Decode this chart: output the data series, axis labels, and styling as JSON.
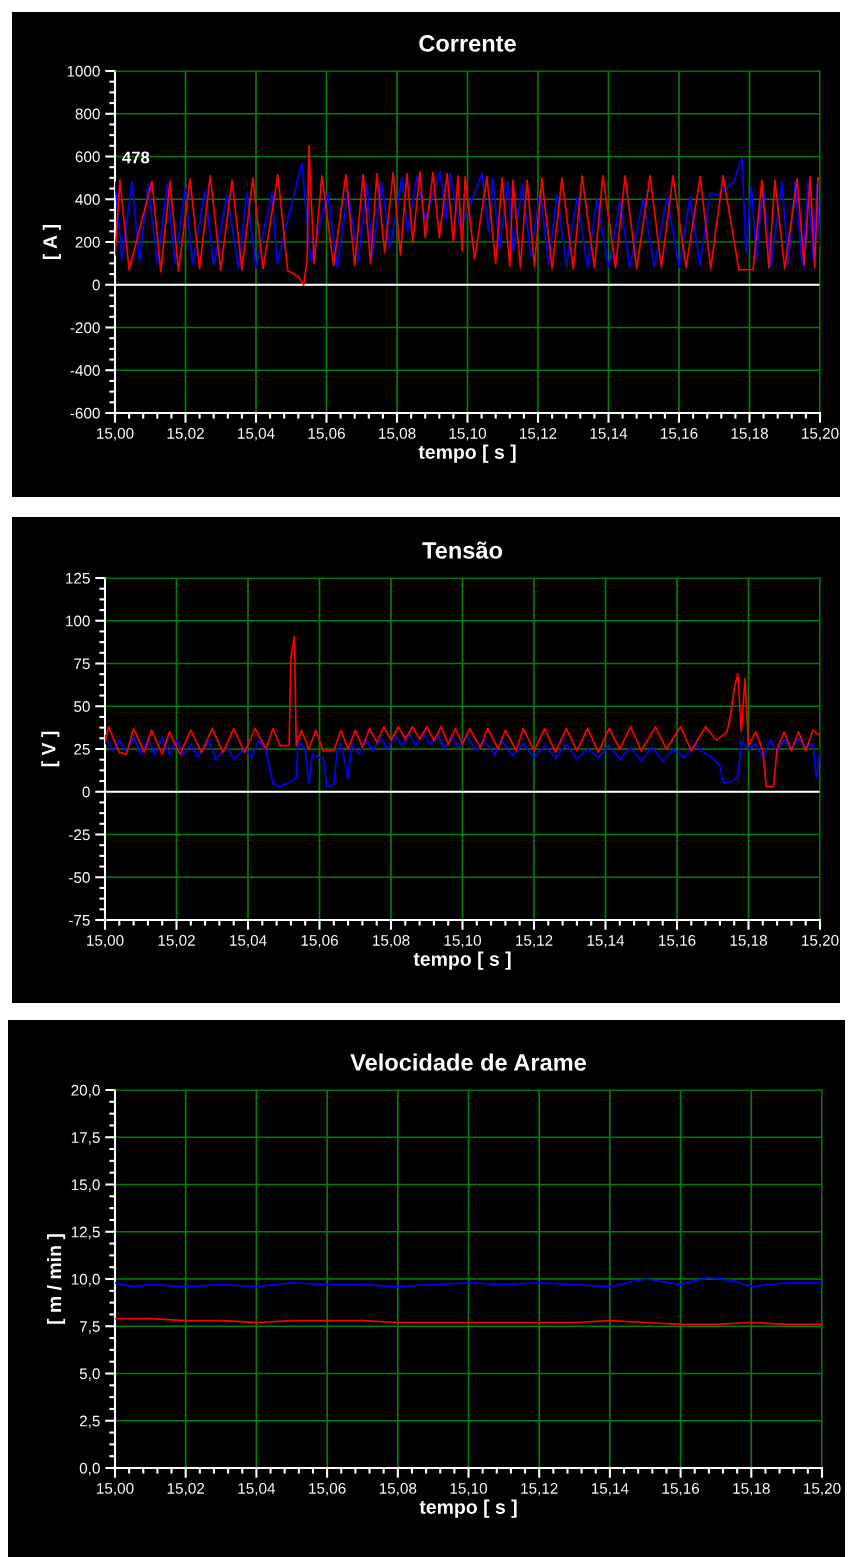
{
  "chart_data": [
    {
      "type": "line",
      "title": "Corrente",
      "xlabel": "tempo [ s ]",
      "ylabel": "[ A ]",
      "grid": true,
      "xlim": [
        15.0,
        15.2
      ],
      "xticks": [
        {
          "value": 15.0,
          "label": "15,00"
        },
        {
          "value": 15.02,
          "label": "15,02"
        },
        {
          "value": 15.04,
          "label": "15,04"
        },
        {
          "value": 15.06,
          "label": "15,06"
        },
        {
          "value": 15.08,
          "label": "15,08"
        },
        {
          "value": 15.1,
          "label": "15,10"
        },
        {
          "value": 15.12,
          "label": "15,12"
        },
        {
          "value": 15.14,
          "label": "15,14"
        },
        {
          "value": 15.16,
          "label": "15,16"
        },
        {
          "value": 15.18,
          "label": "15,18"
        },
        {
          "value": 15.2,
          "label": "15,20"
        }
      ],
      "ylim": [
        -600,
        1000
      ],
      "yticks": [
        -600,
        -400,
        -200,
        0,
        200,
        400,
        600,
        800,
        1000
      ],
      "ref_lines": [
        {
          "axis": "y",
          "value": 0,
          "color": "#ffffff"
        }
      ],
      "annotations": [
        {
          "text": "478",
          "x": 15.0,
          "y": 478
        }
      ],
      "series": [
        {
          "color": "#0000ff",
          "x": [
            15.0,
            15.002,
            15.0048,
            15.007,
            15.0094,
            15.012,
            15.0148,
            15.017,
            15.0199,
            15.022,
            15.0255,
            15.028,
            15.0318,
            15.035,
            15.0374,
            15.04,
            15.0445,
            15.046,
            15.053,
            15.0555,
            15.0604,
            15.063,
            15.0661,
            15.069,
            15.0715,
            15.073,
            15.0757,
            15.078,
            15.0814,
            15.083,
            15.0857,
            15.088,
            15.0922,
            15.094,
            15.095,
            15.098,
            15.1041,
            15.106,
            15.1072,
            15.109,
            15.1115,
            15.113,
            15.1155,
            15.118,
            15.1206,
            15.123,
            15.1254,
            15.128,
            15.1311,
            15.134,
            15.1367,
            15.14,
            15.1433,
            15.146,
            15.1498,
            15.153,
            15.1566,
            15.16,
            15.1631,
            15.166,
            15.1688,
            15.171,
            15.1755,
            15.1779,
            15.179,
            15.1805,
            15.182,
            15.1838,
            15.186,
            15.1892,
            15.191,
            15.1929,
            15.195,
            15.1966,
            15.198,
            15.1991,
            15.2
          ],
          "values": [
            480,
            120,
            480,
            110,
            470,
            100,
            470,
            100,
            450,
            95,
            440,
            90,
            420,
            80,
            430,
            80,
            430,
            100,
            570,
            110,
            430,
            80,
            440,
            110,
            470,
            130,
            480,
            170,
            500,
            250,
            510,
            300,
            530,
            300,
            520,
            260,
            520,
            250,
            500,
            170,
            480,
            160,
            470,
            130,
            440,
            100,
            420,
            90,
            410,
            80,
            400,
            80,
            390,
            80,
            400,
            85,
            410,
            80,
            410,
            90,
            430,
            420,
            480,
            595,
            150,
            460,
            120,
            470,
            90,
            480,
            100,
            480,
            90,
            480,
            120,
            470,
            180
          ]
        },
        {
          "color": "#ff0000",
          "x": [
            15.0,
            15.0014,
            15.004,
            15.0105,
            15.013,
            15.0156,
            15.018,
            15.0213,
            15.024,
            15.027,
            15.03,
            15.0332,
            15.036,
            15.0391,
            15.042,
            15.0462,
            15.049,
            15.052,
            15.0535,
            15.0545,
            15.055,
            15.0565,
            15.0587,
            15.062,
            15.0655,
            15.068,
            15.0704,
            15.0725,
            15.0743,
            15.0765,
            15.0789,
            15.081,
            15.0828,
            15.0845,
            15.0865,
            15.088,
            15.0902,
            15.092,
            15.0942,
            15.096,
            15.0973,
            15.0985,
            15.0993,
            15.102,
            15.1055,
            15.108,
            15.1098,
            15.112,
            15.1129,
            15.115,
            15.1169,
            15.119,
            15.1211,
            15.124,
            15.1268,
            15.13,
            15.1325,
            15.136,
            15.1384,
            15.142,
            15.1447,
            15.148,
            15.1518,
            15.155,
            15.1583,
            15.162,
            15.166,
            15.169,
            15.1725,
            15.177,
            15.181,
            15.1835,
            15.1855,
            15.1872,
            15.19,
            15.1935,
            15.1955,
            15.1972,
            15.1985,
            15.1994,
            15.2
          ],
          "values": [
            140,
            490,
            70,
            485,
            60,
            485,
            65,
            495,
            75,
            510,
            70,
            490,
            70,
            500,
            75,
            515,
            65,
            40,
            0,
            110,
            650,
            100,
            510,
            90,
            515,
            90,
            515,
            100,
            520,
            150,
            525,
            140,
            520,
            200,
            530,
            220,
            525,
            220,
            520,
            200,
            510,
            160,
            505,
            120,
            505,
            100,
            500,
            85,
            490,
            80,
            490,
            85,
            500,
            75,
            500,
            75,
            510,
            80,
            510,
            80,
            510,
            75,
            510,
            80,
            510,
            80,
            505,
            75,
            510,
            70,
            70,
            490,
            80,
            490,
            75,
            495,
            90,
            505,
            80,
            500,
            490
          ]
        }
      ]
    },
    {
      "type": "line",
      "title": "Tensão",
      "xlabel": "tempo [ s ]",
      "ylabel": "[ V ]",
      "grid": true,
      "xlim": [
        15.0,
        15.2
      ],
      "xticks": [
        {
          "value": 15.0,
          "label": "15,00"
        },
        {
          "value": 15.02,
          "label": "15,02"
        },
        {
          "value": 15.04,
          "label": "15,04"
        },
        {
          "value": 15.06,
          "label": "15,06"
        },
        {
          "value": 15.08,
          "label": "15,08"
        },
        {
          "value": 15.1,
          "label": "15,10"
        },
        {
          "value": 15.12,
          "label": "15,12"
        },
        {
          "value": 15.14,
          "label": "15,14"
        },
        {
          "value": 15.16,
          "label": "15,16"
        },
        {
          "value": 15.18,
          "label": "15,18"
        },
        {
          "value": 15.2,
          "label": "15,20"
        }
      ],
      "ylim": [
        -75,
        125
      ],
      "yticks": [
        -75,
        -50,
        -25,
        0,
        25,
        50,
        75,
        100,
        125
      ],
      "ref_lines": [
        {
          "axis": "y",
          "value": 0,
          "color": "#ffffff"
        }
      ],
      "series": [
        {
          "color": "#0000ff",
          "x": [
            15.0,
            15.002,
            15.004,
            15.006,
            15.008,
            15.01,
            15.012,
            15.014,
            15.016,
            15.018,
            15.02,
            15.022,
            15.024,
            15.026,
            15.029,
            15.031,
            15.034,
            15.036,
            15.039,
            15.041,
            15.043,
            15.045,
            15.047,
            15.048,
            15.05,
            15.052,
            15.0535,
            15.054,
            15.056,
            15.057,
            15.058,
            15.06,
            15.061,
            15.062,
            15.064,
            15.065,
            15.066,
            15.067,
            15.068,
            15.069,
            15.071,
            15.073,
            15.075,
            15.077,
            15.079,
            15.081,
            15.083,
            15.085,
            15.087,
            15.089,
            15.091,
            15.093,
            15.095,
            15.097,
            15.099,
            15.101,
            15.104,
            15.106,
            15.109,
            15.111,
            15.114,
            15.117,
            15.12,
            15.123,
            15.126,
            15.129,
            15.132,
            15.135,
            15.138,
            15.141,
            15.144,
            15.147,
            15.15,
            15.153,
            15.156,
            15.159,
            15.162,
            15.165,
            15.168,
            15.17,
            15.172,
            15.173,
            15.175,
            15.177,
            15.178,
            15.18,
            15.182,
            15.184,
            15.186,
            15.188,
            15.19,
            15.192,
            15.194,
            15.196,
            15.198,
            15.199,
            15.2
          ],
          "values": [
            33,
            24,
            30,
            23,
            32,
            22,
            31,
            22,
            32,
            22,
            30,
            22,
            28,
            20,
            30,
            19,
            27,
            19,
            25,
            20,
            30,
            24,
            5,
            3,
            4,
            6,
            8,
            30,
            25,
            5,
            22,
            20,
            20,
            3,
            4,
            25,
            28,
            18,
            8,
            28,
            22,
            30,
            24,
            32,
            25,
            33,
            27,
            34,
            27,
            34,
            28,
            33,
            25,
            32,
            26,
            33,
            24,
            30,
            22,
            30,
            21,
            28,
            20,
            27,
            20,
            28,
            19,
            25,
            20,
            27,
            19,
            26,
            18,
            26,
            18,
            25,
            20,
            28,
            22,
            20,
            15,
            5,
            6,
            8,
            30,
            25,
            28,
            20,
            30,
            24,
            30,
            25,
            31,
            26,
            28,
            8,
            25
          ]
        },
        {
          "color": "#ff0000",
          "x": [
            15.0,
            15.001,
            15.004,
            15.006,
            15.008,
            15.011,
            15.013,
            15.016,
            15.018,
            15.021,
            15.024,
            15.027,
            15.03,
            15.033,
            15.036,
            15.039,
            15.042,
            15.045,
            15.047,
            15.049,
            15.0515,
            15.052,
            15.053,
            15.0535,
            15.055,
            15.057,
            15.059,
            15.061,
            15.064,
            15.066,
            15.068,
            15.07,
            15.072,
            15.074,
            15.076,
            15.078,
            15.08,
            15.082,
            15.084,
            15.086,
            15.088,
            15.09,
            15.092,
            15.094,
            15.096,
            15.098,
            15.1,
            15.102,
            15.105,
            15.107,
            15.11,
            15.112,
            15.115,
            15.117,
            15.12,
            15.123,
            15.126,
            15.129,
            15.132,
            15.135,
            15.138,
            15.141,
            15.144,
            15.147,
            15.15,
            15.154,
            15.157,
            15.161,
            15.164,
            15.168,
            15.171,
            15.174,
            15.175,
            15.176,
            15.177,
            15.178,
            15.179,
            15.18,
            15.182,
            15.184,
            15.185,
            15.187,
            15.188,
            15.19,
            15.192,
            15.194,
            15.196,
            15.198,
            15.2
          ],
          "values": [
            28,
            38,
            23,
            22,
            37,
            23,
            36,
            22,
            35,
            22,
            36,
            23,
            37,
            23,
            37,
            23,
            37,
            25,
            37,
            27,
            27,
            78,
            91,
            27,
            36,
            25,
            36,
            24,
            24,
            36,
            25,
            36,
            26,
            37,
            29,
            38,
            30,
            38,
            31,
            38,
            31,
            38,
            30,
            38,
            28,
            37,
            28,
            37,
            26,
            37,
            25,
            36,
            24,
            37,
            24,
            37,
            23,
            37,
            24,
            37,
            23,
            37,
            25,
            38,
            24,
            38,
            25,
            38,
            24,
            38,
            30,
            35,
            45,
            60,
            69,
            35,
            66,
            27,
            35,
            24,
            3,
            3,
            25,
            35,
            24,
            35,
            24,
            36,
            33
          ]
        }
      ]
    },
    {
      "type": "line",
      "title": "Velocidade de Arame",
      "xlabel": "tempo [ s ]",
      "ylabel": "[ m / min ]",
      "grid": true,
      "xlim": [
        15.0,
        15.2
      ],
      "xticks": [
        {
          "value": 15.0,
          "label": "15,00"
        },
        {
          "value": 15.02,
          "label": "15,02"
        },
        {
          "value": 15.04,
          "label": "15,04"
        },
        {
          "value": 15.06,
          "label": "15,06"
        },
        {
          "value": 15.08,
          "label": "15,08"
        },
        {
          "value": 15.1,
          "label": "15,10"
        },
        {
          "value": 15.12,
          "label": "15,12"
        },
        {
          "value": 15.14,
          "label": "15,14"
        },
        {
          "value": 15.16,
          "label": "15,16"
        },
        {
          "value": 15.18,
          "label": "15,18"
        },
        {
          "value": 15.2,
          "label": "15,20"
        }
      ],
      "ylim": [
        0,
        20
      ],
      "yticks": [
        {
          "value": 0,
          "label": "0,0"
        },
        {
          "value": 2.5,
          "label": "2,5"
        },
        {
          "value": 5,
          "label": "5,0"
        },
        {
          "value": 7.5,
          "label": "7,5"
        },
        {
          "value": 10,
          "label": "10,0"
        },
        {
          "value": 12.5,
          "label": "12,5"
        },
        {
          "value": 15,
          "label": "15,0"
        },
        {
          "value": 17.5,
          "label": "17,5"
        },
        {
          "value": 20,
          "label": "20,0"
        }
      ],
      "series": [
        {
          "color": "#0000ff",
          "x": [
            15.0,
            15.005,
            15.01,
            15.02,
            15.03,
            15.04,
            15.05,
            15.06,
            15.07,
            15.08,
            15.09,
            15.1,
            15.11,
            15.12,
            15.13,
            15.14,
            15.15,
            15.16,
            15.168,
            15.175,
            15.18,
            15.19,
            15.2
          ],
          "values": [
            9.8,
            9.6,
            9.7,
            9.6,
            9.7,
            9.6,
            9.8,
            9.7,
            9.7,
            9.6,
            9.7,
            9.8,
            9.7,
            9.8,
            9.7,
            9.6,
            10.0,
            9.7,
            10.1,
            9.9,
            9.6,
            9.8,
            9.8
          ]
        },
        {
          "color": "#ff0000",
          "x": [
            15.0,
            15.01,
            15.02,
            15.03,
            15.04,
            15.05,
            15.06,
            15.07,
            15.08,
            15.09,
            15.1,
            15.11,
            15.12,
            15.13,
            15.14,
            15.15,
            15.16,
            15.17,
            15.18,
            15.19,
            15.2
          ],
          "values": [
            7.9,
            7.9,
            7.8,
            7.8,
            7.7,
            7.8,
            7.8,
            7.8,
            7.7,
            7.7,
            7.7,
            7.7,
            7.7,
            7.7,
            7.8,
            7.7,
            7.6,
            7.6,
            7.7,
            7.6,
            7.6
          ]
        }
      ]
    }
  ]
}
